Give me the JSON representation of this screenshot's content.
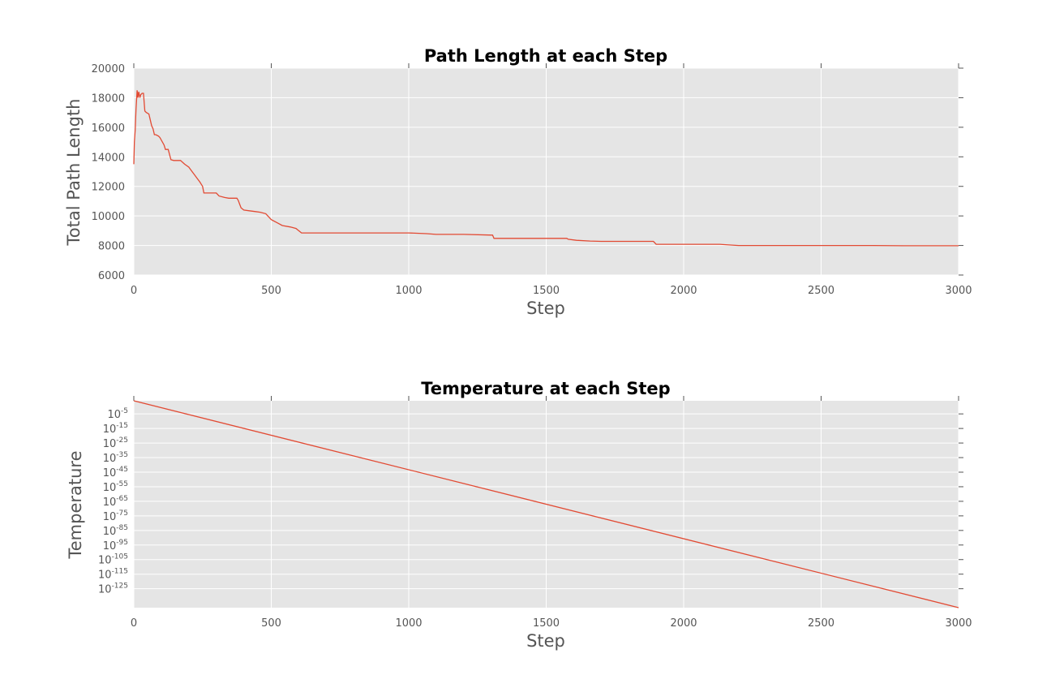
{
  "chart_data": [
    {
      "type": "line",
      "title": "Path Length at each Step",
      "xlabel": "Step",
      "ylabel": "Total Path Length",
      "xlim": [
        0,
        3000
      ],
      "ylim": [
        6000,
        20000
      ],
      "xticks": [
        "0",
        "500",
        "1000",
        "1500",
        "2000",
        "2500",
        "3000"
      ],
      "yticks": [
        "6000",
        "8000",
        "10000",
        "12000",
        "14000",
        "16000",
        "18000",
        "20000"
      ],
      "grid": true,
      "line_color": "#e24a33",
      "series": [
        {
          "x": [
            0,
            2,
            5,
            8,
            12,
            15,
            18,
            22,
            25,
            30,
            35,
            40,
            45,
            55,
            60,
            65,
            70,
            75,
            80,
            90,
            95,
            110,
            115,
            125,
            135,
            145,
            160,
            170,
            185,
            200,
            210,
            220,
            230,
            240,
            250,
            255,
            300,
            310,
            330,
            345,
            375,
            380,
            385,
            390,
            400,
            420,
            440,
            460,
            480,
            500,
            520,
            540,
            570,
            590,
            600,
            610,
            650,
            700,
            1000,
            1065,
            1080,
            1100,
            1200,
            1305,
            1310,
            1400,
            1500,
            1575,
            1580,
            1610,
            1660,
            1700,
            1890,
            1900,
            2000,
            2130,
            2200,
            2690,
            2800,
            3000
          ],
          "y": [
            13500,
            15000,
            15800,
            17200,
            18500,
            18000,
            18400,
            18000,
            18200,
            18300,
            18300,
            17100,
            17000,
            16900,
            16500,
            16100,
            15900,
            15500,
            15500,
            15400,
            15300,
            14800,
            14500,
            14500,
            13800,
            13750,
            13750,
            13750,
            13500,
            13300,
            13050,
            12800,
            12550,
            12300,
            12000,
            11550,
            11550,
            11350,
            11250,
            11200,
            11200,
            11050,
            10800,
            10550,
            10400,
            10350,
            10300,
            10250,
            10150,
            9750,
            9550,
            9350,
            9250,
            9150,
            9000,
            8850,
            8850,
            8850,
            8850,
            8800,
            8780,
            8750,
            8750,
            8700,
            8480,
            8480,
            8480,
            8480,
            8420,
            8350,
            8300,
            8280,
            8280,
            8080,
            8080,
            8080,
            8000,
            8000,
            7980,
            7980
          ]
        }
      ]
    },
    {
      "type": "line",
      "title": "Temperature at each Step",
      "xlabel": "Step",
      "ylabel": "Temperature",
      "xlim": [
        0,
        3000
      ],
      "ylim": [
        -138,
        4
      ],
      "yscale": "log",
      "xticks": [
        "0",
        "500",
        "1000",
        "1500",
        "2000",
        "2500",
        "3000"
      ],
      "ytick_exponents": [
        -5,
        -15,
        -25,
        -35,
        -45,
        -55,
        -65,
        -75,
        -85,
        -95,
        -105,
        -115,
        -125
      ],
      "grid": true,
      "line_color": "#e24a33",
      "series": [
        {
          "x": [
            0,
            3000
          ],
          "y_log10": [
            4,
            -138
          ]
        }
      ]
    }
  ]
}
